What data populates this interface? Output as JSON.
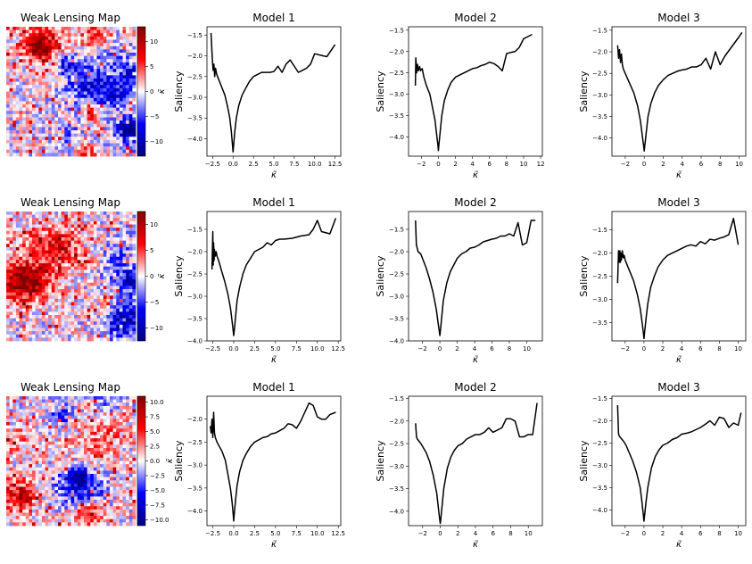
{
  "colors": {
    "line": "#000000",
    "cmap_low": "#00007f",
    "cmap_mid": "#ffffff",
    "cmap_high": "#7f0000"
  },
  "chart_data": [
    {
      "type": "heatmap",
      "title": "Weak Lensing Map",
      "colorbar_label": "κ̃",
      "colorbar_range": [
        -13,
        13
      ],
      "colorbar_ticks": [
        10,
        5,
        0,
        -5,
        -10
      ],
      "colorbar_tick_labels": [
        "10",
        "5",
        "0",
        "−5",
        "−10"
      ]
    },
    {
      "type": "line",
      "title": "Model 1",
      "xlabel": "κ̃",
      "ylabel": "Saliency",
      "xlim": [
        -3.2,
        13.2
      ],
      "ylim": [
        -4.42,
        -1.3
      ],
      "xticks": [
        -2.5,
        0,
        2.5,
        5,
        7.5,
        10,
        12.5
      ],
      "xtick_labels": [
        "−2.5",
        "0.0",
        "2.5",
        "5.0",
        "7.5",
        "10.0",
        "12.5"
      ],
      "yticks": [
        -1.5,
        -2.0,
        -2.5,
        -3.0,
        -3.5,
        -4.0
      ],
      "ytick_labels": [
        "−1.5",
        "−2.0",
        "−2.5",
        "−3.0",
        "−3.5",
        "−4.0"
      ],
      "x": [
        -2.7,
        -2.55,
        -2.45,
        -2.35,
        -2.25,
        -2.15,
        -2.0,
        -1.7,
        -1.4,
        -1.0,
        -0.7,
        -0.4,
        -0.2,
        -0.05,
        0.0,
        0.05,
        0.2,
        0.4,
        0.7,
        1.1,
        1.5,
        2.0,
        2.5,
        3.0,
        3.5,
        4.0,
        4.5,
        5.0,
        5.5,
        6.0,
        6.5,
        7.0,
        7.5,
        8.0,
        8.5,
        9.0,
        9.5,
        10.0,
        11.0,
        11.5,
        12.5
      ],
      "y": [
        -1.45,
        -2.05,
        -2.35,
        -2.2,
        -2.5,
        -2.3,
        -2.45,
        -2.6,
        -2.75,
        -2.95,
        -3.2,
        -3.5,
        -3.85,
        -4.2,
        -4.32,
        -4.2,
        -3.85,
        -3.5,
        -3.2,
        -2.95,
        -2.8,
        -2.62,
        -2.5,
        -2.45,
        -2.4,
        -2.4,
        -2.4,
        -2.38,
        -2.25,
        -2.4,
        -2.2,
        -2.1,
        -2.25,
        -2.4,
        -2.35,
        -2.3,
        -2.2,
        -1.95,
        -2.0,
        -2.02,
        -1.73
      ]
    },
    {
      "type": "line",
      "title": "Model 2",
      "xlabel": "κ̃",
      "ylabel": "Saliency",
      "xlim": [
        -3.5,
        12.2
      ],
      "ylim": [
        -4.45,
        -1.42
      ],
      "xticks": [
        -2,
        0,
        2,
        4,
        6,
        8,
        10,
        12
      ],
      "xtick_labels": [
        "−2",
        "0",
        "2",
        "4",
        "6",
        "8",
        "10",
        "12"
      ],
      "yticks": [
        -1.5,
        -2.0,
        -2.5,
        -3.0,
        -3.5,
        -4.0
      ],
      "ytick_labels": [
        "−1.5",
        "−2.0",
        "−2.5",
        "−3.0",
        "−3.5",
        "−4.0"
      ],
      "x": [
        -2.7,
        -2.65,
        -2.55,
        -2.45,
        -2.35,
        -2.2,
        -2.1,
        -1.9,
        -1.7,
        -1.4,
        -1.0,
        -0.7,
        -0.4,
        -0.2,
        -0.05,
        0.0,
        0.05,
        0.2,
        0.4,
        0.7,
        1.1,
        1.5,
        2.0,
        2.5,
        3.0,
        3.5,
        4.0,
        4.5,
        5.0,
        5.5,
        6.0,
        6.5,
        7.0,
        7.5,
        8.0,
        8.5,
        9.0,
        9.5,
        10.0,
        10.5,
        11.0
      ],
      "y": [
        -2.8,
        -2.15,
        -2.5,
        -2.3,
        -2.45,
        -2.35,
        -2.45,
        -2.4,
        -2.6,
        -2.8,
        -3.0,
        -3.3,
        -3.6,
        -3.95,
        -4.2,
        -4.32,
        -4.2,
        -3.9,
        -3.5,
        -3.15,
        -2.9,
        -2.72,
        -2.6,
        -2.55,
        -2.5,
        -2.45,
        -2.4,
        -2.38,
        -2.33,
        -2.3,
        -2.25,
        -2.28,
        -2.35,
        -2.45,
        -2.05,
        -2.02,
        -2.0,
        -1.9,
        -1.7,
        -1.65,
        -1.6
      ]
    },
    {
      "type": "line",
      "title": "Model 3",
      "xlabel": "κ̃",
      "ylabel": "Saliency",
      "xlim": [
        -3.4,
        10.7
      ],
      "ylim": [
        -4.42,
        -1.42
      ],
      "xticks": [
        -2,
        0,
        2,
        4,
        6,
        8,
        10
      ],
      "xtick_labels": [
        "−2",
        "0",
        "2",
        "4",
        "6",
        "8",
        "10"
      ],
      "yticks": [
        -1.5,
        -2.0,
        -2.5,
        -3.0,
        -3.5,
        -4.0
      ],
      "ytick_labels": [
        "−1.5",
        "−2.0",
        "−2.5",
        "−3.0",
        "−3.5",
        "−4.0"
      ],
      "x": [
        -2.8,
        -2.7,
        -2.6,
        -2.5,
        -2.4,
        -2.3,
        -2.2,
        -2.0,
        -1.8,
        -1.5,
        -1.1,
        -0.7,
        -0.4,
        -0.2,
        -0.05,
        0.0,
        0.05,
        0.2,
        0.4,
        0.7,
        1.1,
        1.5,
        2.0,
        2.5,
        3.0,
        3.5,
        4.0,
        4.5,
        5.0,
        5.5,
        6.0,
        6.5,
        7.0,
        7.5,
        8.0,
        8.5,
        9.0,
        9.5,
        10.0,
        10.3
      ],
      "y": [
        -1.85,
        -2.15,
        -1.95,
        -2.25,
        -2.05,
        -2.3,
        -2.4,
        -2.5,
        -2.6,
        -2.75,
        -2.95,
        -3.25,
        -3.6,
        -3.95,
        -4.2,
        -4.3,
        -4.2,
        -3.9,
        -3.5,
        -3.2,
        -2.95,
        -2.78,
        -2.65,
        -2.55,
        -2.5,
        -2.45,
        -2.42,
        -2.4,
        -2.35,
        -2.35,
        -2.3,
        -2.15,
        -2.4,
        -2.0,
        -2.3,
        -2.1,
        -1.95,
        -1.8,
        -1.65,
        -1.55
      ]
    },
    {
      "type": "heatmap",
      "title": "Weak Lensing Map",
      "colorbar_label": "κ̃",
      "colorbar_range": [
        -12.5,
        12.5
      ],
      "colorbar_ticks": [
        10,
        5,
        0,
        -5,
        -10
      ],
      "colorbar_tick_labels": [
        "10",
        "5",
        "0",
        "−5",
        "−10"
      ]
    },
    {
      "type": "line",
      "title": "Model 1",
      "xlabel": "κ̃",
      "ylabel": "Saliency",
      "xlim": [
        -3.2,
        12.8
      ],
      "ylim": [
        -4.0,
        -1.1
      ],
      "xticks": [
        -2.5,
        0,
        2.5,
        5,
        7.5,
        10,
        12.5
      ],
      "xtick_labels": [
        "−2.5",
        "0.0",
        "2.5",
        "5.0",
        "7.5",
        "10.0",
        "12.5"
      ],
      "yticks": [
        -1.5,
        -2.0,
        -2.5,
        -3.0,
        -3.5,
        -4.0
      ],
      "ytick_labels": [
        "−1.5",
        "−2.0",
        "−2.5",
        "−3.0",
        "−3.5",
        "−4.0"
      ],
      "x": [
        -2.6,
        -2.5,
        -2.45,
        -2.4,
        -2.35,
        -2.3,
        -2.2,
        -2.1,
        -2.0,
        -1.8,
        -1.5,
        -1.1,
        -0.7,
        -0.4,
        -0.2,
        -0.05,
        0.0,
        0.05,
        0.2,
        0.4,
        0.7,
        1.1,
        1.5,
        2.0,
        2.5,
        3.0,
        3.5,
        4.0,
        4.5,
        5.0,
        5.5,
        6.0,
        7.0,
        8.0,
        9.0,
        9.5,
        10.0,
        10.5,
        11.5,
        12.2
      ],
      "y": [
        -2.4,
        -1.55,
        -2.3,
        -1.8,
        -2.2,
        -1.95,
        -2.1,
        -2.0,
        -2.1,
        -2.2,
        -2.4,
        -2.65,
        -2.95,
        -3.25,
        -3.55,
        -3.8,
        -3.88,
        -3.8,
        -3.5,
        -3.1,
        -2.8,
        -2.5,
        -2.3,
        -2.15,
        -2.0,
        -1.95,
        -1.9,
        -1.8,
        -1.85,
        -1.75,
        -1.72,
        -1.72,
        -1.7,
        -1.65,
        -1.62,
        -1.5,
        -1.3,
        -1.55,
        -1.6,
        -1.25
      ]
    },
    {
      "type": "line",
      "title": "Model 2",
      "xlabel": "κ̃",
      "ylabel": "Saliency",
      "xlim": [
        -3.6,
        11.8
      ],
      "ylim": [
        -4.0,
        -1.1
      ],
      "xticks": [
        -2,
        0,
        2,
        4,
        6,
        8,
        10
      ],
      "xtick_labels": [
        "−2",
        "0",
        "2",
        "4",
        "6",
        "8",
        "10"
      ],
      "yticks": [
        -1.5,
        -2.0,
        -2.5,
        -3.0,
        -3.5,
        -4.0
      ],
      "ytick_labels": [
        "−1.5",
        "−2.0",
        "−2.5",
        "−3.0",
        "−3.5",
        "−4.0"
      ],
      "x": [
        -2.8,
        -2.7,
        -2.5,
        -2.2,
        -1.9,
        -1.6,
        -1.2,
        -0.8,
        -0.4,
        -0.2,
        -0.05,
        0.0,
        0.05,
        0.2,
        0.4,
        0.8,
        1.2,
        1.6,
        2.0,
        2.5,
        3.0,
        3.5,
        4.0,
        4.5,
        5.0,
        5.5,
        6.0,
        6.5,
        7.0,
        7.5,
        8.0,
        8.5,
        9.0,
        9.5,
        10.0,
        10.5,
        11.0
      ],
      "y": [
        -1.3,
        -1.85,
        -2.0,
        -2.05,
        -2.2,
        -2.35,
        -2.6,
        -2.9,
        -3.3,
        -3.6,
        -3.8,
        -3.88,
        -3.8,
        -3.5,
        -3.1,
        -2.7,
        -2.45,
        -2.3,
        -2.15,
        -2.05,
        -2.0,
        -1.92,
        -1.9,
        -1.85,
        -1.78,
        -1.75,
        -1.72,
        -1.7,
        -1.65,
        -1.65,
        -1.6,
        -1.65,
        -1.35,
        -1.85,
        -1.8,
        -1.3,
        -1.3
      ]
    },
    {
      "type": "line",
      "title": "Model 3",
      "xlabel": "κ̃",
      "ylabel": "Saliency",
      "xlim": [
        -3.4,
        10.8
      ],
      "ylim": [
        -3.9,
        -1.1
      ],
      "xticks": [
        -2,
        0,
        2,
        4,
        6,
        8,
        10
      ],
      "xtick_labels": [
        "−2",
        "0",
        "2",
        "4",
        "6",
        "8",
        "10"
      ],
      "yticks": [
        -1.5,
        -2.0,
        -2.5,
        -3.0,
        -3.5
      ],
      "ytick_labels": [
        "−1.5",
        "−2.0",
        "−2.5",
        "−3.0",
        "−3.5"
      ],
      "x": [
        -2.8,
        -2.7,
        -2.6,
        -2.55,
        -2.5,
        -2.45,
        -2.4,
        -2.3,
        -2.2,
        -2.1,
        -2.0,
        -1.8,
        -1.5,
        -1.1,
        -0.7,
        -0.4,
        -0.2,
        -0.05,
        0.0,
        0.05,
        0.2,
        0.4,
        0.7,
        1.1,
        1.5,
        2.0,
        2.5,
        3.0,
        3.5,
        4.0,
        4.5,
        5.0,
        5.5,
        6.0,
        6.5,
        7.0,
        7.5,
        8.0,
        8.5,
        9.0,
        9.5,
        10.0
      ],
      "y": [
        -2.65,
        -1.95,
        -2.2,
        -1.95,
        -2.2,
        -2.0,
        -2.15,
        -1.95,
        -2.1,
        -2.05,
        -2.15,
        -2.25,
        -2.4,
        -2.6,
        -2.9,
        -3.2,
        -3.5,
        -3.75,
        -3.85,
        -3.75,
        -3.45,
        -3.1,
        -2.75,
        -2.5,
        -2.3,
        -2.15,
        -2.05,
        -2.0,
        -1.95,
        -1.9,
        -1.85,
        -1.82,
        -1.85,
        -1.75,
        -1.8,
        -1.7,
        -1.72,
        -1.68,
        -1.65,
        -1.6,
        -1.25,
        -1.82
      ]
    },
    {
      "type": "heatmap",
      "title": "Weak Lensing Map",
      "colorbar_label": "κ̃",
      "colorbar_range": [
        -11,
        11
      ],
      "colorbar_ticks": [
        10,
        7.5,
        5,
        2.5,
        0,
        -2.5,
        -5,
        -7.5,
        -10
      ],
      "colorbar_tick_labels": [
        "10.0",
        "7.5",
        "5.0",
        "2.5",
        "0.0",
        "−2.5",
        "−5.0",
        "−7.5",
        "−10.0"
      ]
    },
    {
      "type": "line",
      "title": "Model 1",
      "xlabel": "κ̃",
      "ylabel": "Saliency",
      "xlim": [
        -3.2,
        12.8
      ],
      "ylim": [
        -4.32,
        -1.5
      ],
      "xticks": [
        -2.5,
        0,
        2.5,
        5,
        7.5,
        10,
        12.5
      ],
      "xtick_labels": [
        "−2.5",
        "0.0",
        "2.5",
        "5.0",
        "7.5",
        "10.0",
        "12.5"
      ],
      "yticks": [
        -2.0,
        -2.5,
        -3.0,
        -3.5,
        -4.0
      ],
      "ytick_labels": [
        "−2.0",
        "−2.5",
        "−3.0",
        "−3.5",
        "−4.0"
      ],
      "x": [
        -2.8,
        -2.7,
        -2.6,
        -2.5,
        -2.4,
        -2.3,
        -2.2,
        -2.0,
        -1.7,
        -1.4,
        -1.0,
        -0.7,
        -0.4,
        -0.2,
        -0.05,
        0.0,
        0.05,
        0.2,
        0.4,
        0.7,
        1.1,
        1.5,
        2.0,
        2.5,
        3.0,
        3.5,
        4.0,
        4.5,
        5.0,
        5.5,
        6.0,
        6.5,
        7.0,
        7.5,
        8.0,
        8.5,
        9.0,
        9.5,
        10.0,
        10.5,
        11.0,
        11.5,
        12.2
      ],
      "y": [
        -2.15,
        -2.3,
        -2.0,
        -2.4,
        -1.85,
        -2.3,
        -2.4,
        -2.5,
        -2.6,
        -2.7,
        -2.9,
        -3.2,
        -3.5,
        -3.8,
        -4.1,
        -4.22,
        -4.1,
        -3.8,
        -3.45,
        -3.15,
        -2.9,
        -2.75,
        -2.6,
        -2.5,
        -2.45,
        -2.4,
        -2.38,
        -2.32,
        -2.3,
        -2.25,
        -2.2,
        -2.1,
        -2.12,
        -2.2,
        -2.05,
        -1.85,
        -1.65,
        -1.7,
        -1.95,
        -2.0,
        -2.0,
        -1.9,
        -1.85
      ]
    },
    {
      "type": "line",
      "title": "Model 2",
      "xlabel": "κ̃",
      "ylabel": "Saliency",
      "xlim": [
        -3.6,
        11.6
      ],
      "ylim": [
        -4.32,
        -1.45
      ],
      "xticks": [
        -2,
        0,
        2,
        4,
        6,
        8,
        10
      ],
      "xtick_labels": [
        "−2",
        "0",
        "2",
        "4",
        "6",
        "8",
        "10"
      ],
      "yticks": [
        -1.5,
        -2.0,
        -2.5,
        -3.0,
        -3.5,
        -4.0
      ],
      "ytick_labels": [
        "−1.5",
        "−2.0",
        "−2.5",
        "−3.0",
        "−3.5",
        "−4.0"
      ],
      "x": [
        -2.8,
        -2.7,
        -2.6,
        -2.4,
        -2.2,
        -1.9,
        -1.6,
        -1.2,
        -0.8,
        -0.4,
        -0.2,
        -0.05,
        0.0,
        0.05,
        0.2,
        0.4,
        0.8,
        1.2,
        1.6,
        2.0,
        2.5,
        3.0,
        3.5,
        4.0,
        4.5,
        5.0,
        5.5,
        6.0,
        6.5,
        7.0,
        7.5,
        8.0,
        8.5,
        9.0,
        9.5,
        10.0,
        10.5,
        11.0
      ],
      "y": [
        -2.05,
        -2.35,
        -2.4,
        -2.45,
        -2.5,
        -2.6,
        -2.7,
        -2.9,
        -3.2,
        -3.6,
        -3.95,
        -4.2,
        -4.27,
        -4.2,
        -3.9,
        -3.5,
        -3.05,
        -2.8,
        -2.65,
        -2.55,
        -2.5,
        -2.4,
        -2.35,
        -2.3,
        -2.3,
        -2.25,
        -2.15,
        -2.25,
        -2.2,
        -2.15,
        -1.95,
        -1.95,
        -2.0,
        -2.35,
        -2.35,
        -2.3,
        -2.3,
        -1.6
      ]
    },
    {
      "type": "line",
      "title": "Model 3",
      "xlabel": "κ̃",
      "ylabel": "Saliency",
      "xlim": [
        -3.4,
        10.8
      ],
      "ylim": [
        -4.35,
        -1.45
      ],
      "xticks": [
        -2,
        0,
        2,
        4,
        6,
        8,
        10
      ],
      "xtick_labels": [
        "−2",
        "0",
        "2",
        "4",
        "6",
        "8",
        "10"
      ],
      "yticks": [
        -1.5,
        -2.0,
        -2.5,
        -3.0,
        -3.5,
        -4.0
      ],
      "ytick_labels": [
        "−1.5",
        "−2.0",
        "−2.5",
        "−3.0",
        "−3.5",
        "−4.0"
      ],
      "x": [
        -2.8,
        -2.7,
        -2.6,
        -2.4,
        -2.2,
        -1.9,
        -1.6,
        -1.2,
        -0.8,
        -0.4,
        -0.2,
        -0.05,
        0.0,
        0.05,
        0.2,
        0.4,
        0.8,
        1.2,
        1.6,
        2.0,
        2.5,
        3.0,
        3.5,
        4.0,
        4.5,
        5.0,
        5.5,
        6.0,
        6.5,
        7.0,
        7.5,
        8.0,
        8.5,
        9.0,
        9.5,
        10.0,
        10.3
      ],
      "y": [
        -1.65,
        -2.3,
        -2.35,
        -2.4,
        -2.45,
        -2.55,
        -2.7,
        -2.9,
        -3.15,
        -3.5,
        -3.85,
        -4.15,
        -4.25,
        -4.15,
        -3.85,
        -3.5,
        -3.05,
        -2.8,
        -2.65,
        -2.55,
        -2.5,
        -2.42,
        -2.38,
        -2.3,
        -2.28,
        -2.25,
        -2.2,
        -2.15,
        -2.08,
        -2.0,
        -2.1,
        -1.92,
        -1.95,
        -2.15,
        -2.05,
        -2.1,
        -1.82
      ]
    }
  ]
}
